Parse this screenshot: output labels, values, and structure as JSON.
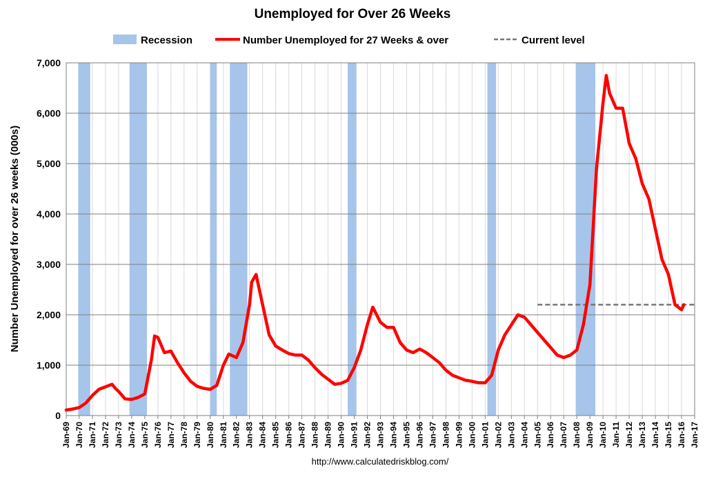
{
  "chart_data": {
    "type": "line",
    "title": "Unemployed for Over 26 Weeks",
    "ylabel": "Number Unemployed for over 26 weeks (000s)",
    "xlabel": "",
    "ylim": [
      0,
      7000
    ],
    "xlim": [
      "Jan-69",
      "Jan-17"
    ],
    "yticks": [
      "0",
      "1,000",
      "2,000",
      "3,000",
      "4,000",
      "5,000",
      "6,000",
      "7,000"
    ],
    "ytick_values": [
      0,
      1000,
      2000,
      3000,
      4000,
      5000,
      6000,
      7000
    ],
    "xticks": [
      "Jan-69",
      "Jan-70",
      "Jan-71",
      "Jan-72",
      "Jan-73",
      "Jan-74",
      "Jan-75",
      "Jan-76",
      "Jan-77",
      "Jan-78",
      "Jan-79",
      "Jan-80",
      "Jan-81",
      "Jan-82",
      "Jan-83",
      "Jan-84",
      "Jan-85",
      "Jan-86",
      "Jan-87",
      "Jan-88",
      "Jan-89",
      "Jan-90",
      "Jan-91",
      "Jan-92",
      "Jan-93",
      "Jan-94",
      "Jan-95",
      "Jan-96",
      "Jan-97",
      "Jan-98",
      "Jan-99",
      "Jan-00",
      "Jan-01",
      "Jan-02",
      "Jan-03",
      "Jan-04",
      "Jan-05",
      "Jan-06",
      "Jan-07",
      "Jan-08",
      "Jan-09",
      "Jan-10",
      "Jan-11",
      "Jan-12",
      "Jan-13",
      "Jan-14",
      "Jan-15",
      "Jan-16",
      "Jan-17"
    ],
    "grid": true,
    "legend": {
      "placement": "top",
      "items": [
        {
          "label": "Recession",
          "kind": "band",
          "color": "#a7c4ea"
        },
        {
          "label": "Number Unemployed for 27 Weeks & over",
          "kind": "line",
          "color": "#ff0000"
        },
        {
          "label": "Current level",
          "kind": "dashed",
          "color": "#777777"
        }
      ]
    },
    "recessions": [
      {
        "start": "Dec-69",
        "end": "Nov-70"
      },
      {
        "start": "Nov-73",
        "end": "Mar-75"
      },
      {
        "start": "Jan-80",
        "end": "Jul-80"
      },
      {
        "start": "Jul-81",
        "end": "Nov-82"
      },
      {
        "start": "Jul-90",
        "end": "Mar-91"
      },
      {
        "start": "Mar-01",
        "end": "Nov-01"
      },
      {
        "start": "Dec-07",
        "end": "Jun-09"
      }
    ],
    "current_level": {
      "value": 2200,
      "start": "Jan-05",
      "end": "Jan-17"
    },
    "series": [
      {
        "name": "Number Unemployed for 27 Weeks & over",
        "color": "#ff0000",
        "points": [
          [
            "Jan-69",
            110
          ],
          [
            "Jul-69",
            130
          ],
          [
            "Jan-70",
            160
          ],
          [
            "Jul-70",
            250
          ],
          [
            "Jan-71",
            400
          ],
          [
            "Jul-71",
            520
          ],
          [
            "Jan-72",
            570
          ],
          [
            "Jul-72",
            620
          ],
          [
            "Oct-72",
            540
          ],
          [
            "Jan-73",
            480
          ],
          [
            "Jul-73",
            330
          ],
          [
            "Jan-74",
            320
          ],
          [
            "Jul-74",
            360
          ],
          [
            "Jan-75",
            430
          ],
          [
            "Jul-75",
            1100
          ],
          [
            "Oct-75",
            1580
          ],
          [
            "Jan-76",
            1550
          ],
          [
            "Jul-76",
            1250
          ],
          [
            "Jan-77",
            1280
          ],
          [
            "Jul-77",
            1050
          ],
          [
            "Jan-78",
            850
          ],
          [
            "Jul-78",
            680
          ],
          [
            "Jan-79",
            580
          ],
          [
            "Jul-79",
            540
          ],
          [
            "Jan-80",
            520
          ],
          [
            "Jul-80",
            600
          ],
          [
            "Jan-81",
            1000
          ],
          [
            "Jun-81",
            1220
          ],
          [
            "Jan-82",
            1150
          ],
          [
            "Jul-82",
            1450
          ],
          [
            "Jan-83",
            2200
          ],
          [
            "Mar-83",
            2650
          ],
          [
            "Jul-83",
            2800
          ],
          [
            "Jan-84",
            2200
          ],
          [
            "Jul-84",
            1600
          ],
          [
            "Jan-85",
            1380
          ],
          [
            "Jul-85",
            1300
          ],
          [
            "Jan-86",
            1230
          ],
          [
            "Jul-86",
            1200
          ],
          [
            "Jan-87",
            1200
          ],
          [
            "Jul-87",
            1100
          ],
          [
            "Jan-88",
            950
          ],
          [
            "Jul-88",
            820
          ],
          [
            "Jan-89",
            720
          ],
          [
            "Jul-89",
            620
          ],
          [
            "Jan-90",
            640
          ],
          [
            "Jul-90",
            700
          ],
          [
            "Jan-91",
            950
          ],
          [
            "Jul-91",
            1300
          ],
          [
            "Jan-92",
            1800
          ],
          [
            "Jun-92",
            2150
          ],
          [
            "Jan-93",
            1850
          ],
          [
            "Jul-93",
            1750
          ],
          [
            "Jan-94",
            1750
          ],
          [
            "Jul-94",
            1450
          ],
          [
            "Jan-95",
            1300
          ],
          [
            "Jul-95",
            1250
          ],
          [
            "Jan-96",
            1320
          ],
          [
            "Jul-96",
            1250
          ],
          [
            "Jan-97",
            1150
          ],
          [
            "Jul-97",
            1050
          ],
          [
            "Jan-98",
            900
          ],
          [
            "Jul-98",
            800
          ],
          [
            "Jan-99",
            750
          ],
          [
            "Jul-99",
            700
          ],
          [
            "Jan-00",
            680
          ],
          [
            "Jul-00",
            650
          ],
          [
            "Jan-01",
            650
          ],
          [
            "Jul-01",
            800
          ],
          [
            "Jan-02",
            1300
          ],
          [
            "Jul-02",
            1600
          ],
          [
            "Jan-03",
            1800
          ],
          [
            "Jul-03",
            2000
          ],
          [
            "Jan-04",
            1950
          ],
          [
            "Jul-04",
            1800
          ],
          [
            "Jan-05",
            1650
          ],
          [
            "Jul-05",
            1500
          ],
          [
            "Jan-06",
            1350
          ],
          [
            "Jul-06",
            1200
          ],
          [
            "Jan-07",
            1150
          ],
          [
            "Jul-07",
            1200
          ],
          [
            "Jan-08",
            1300
          ],
          [
            "Jul-08",
            1800
          ],
          [
            "Jan-09",
            2600
          ],
          [
            "Jul-09",
            4900
          ],
          [
            "Jan-10",
            6200
          ],
          [
            "Apr-10",
            6750
          ],
          [
            "Jul-10",
            6400
          ],
          [
            "Jan-11",
            6100
          ],
          [
            "Jul-11",
            6100
          ],
          [
            "Jan-12",
            5400
          ],
          [
            "Jul-12",
            5100
          ],
          [
            "Jan-13",
            4600
          ],
          [
            "Jul-13",
            4300
          ],
          [
            "Jan-14",
            3700
          ],
          [
            "Jul-14",
            3100
          ],
          [
            "Jan-15",
            2800
          ],
          [
            "Jul-15",
            2200
          ],
          [
            "Jan-16",
            2100
          ],
          [
            "Mar-16",
            2200
          ]
        ]
      }
    ]
  },
  "source_text": "http://www.calculatedriskblog.com/"
}
